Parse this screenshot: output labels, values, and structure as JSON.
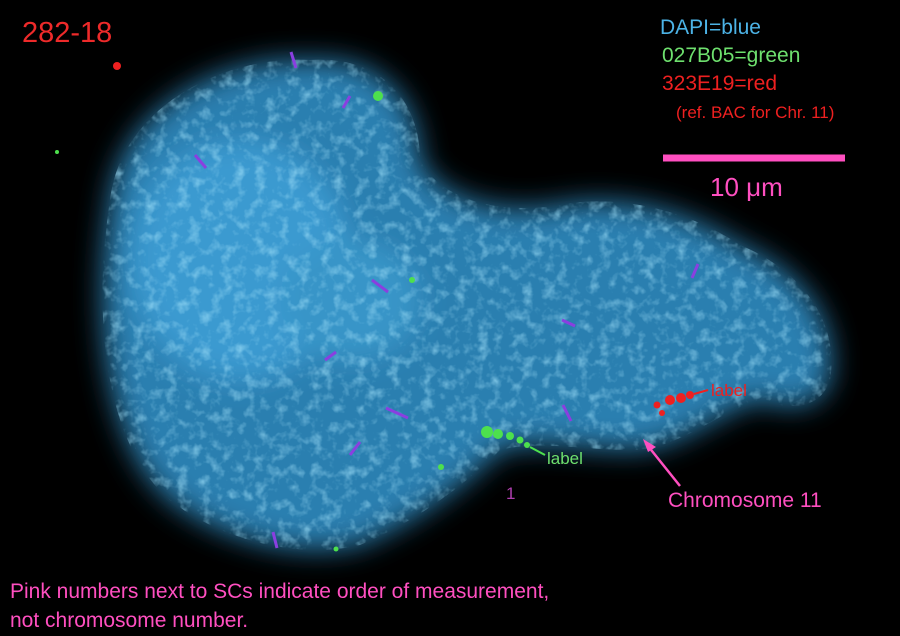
{
  "title": "282-18",
  "legend": [
    "DAPI=blue",
    "027B05=green",
    "323E19=red",
    "(ref. BAC for Chr. 11)"
  ],
  "scale_bar": "10 μm",
  "annotations": {
    "red_label": "label",
    "green_label": "label",
    "chromosome": "Chromosome 11",
    "order_number": "1"
  },
  "caption": [
    "Pink numbers next to SCs indicate order of measurement,",
    "not chromosome number."
  ]
}
